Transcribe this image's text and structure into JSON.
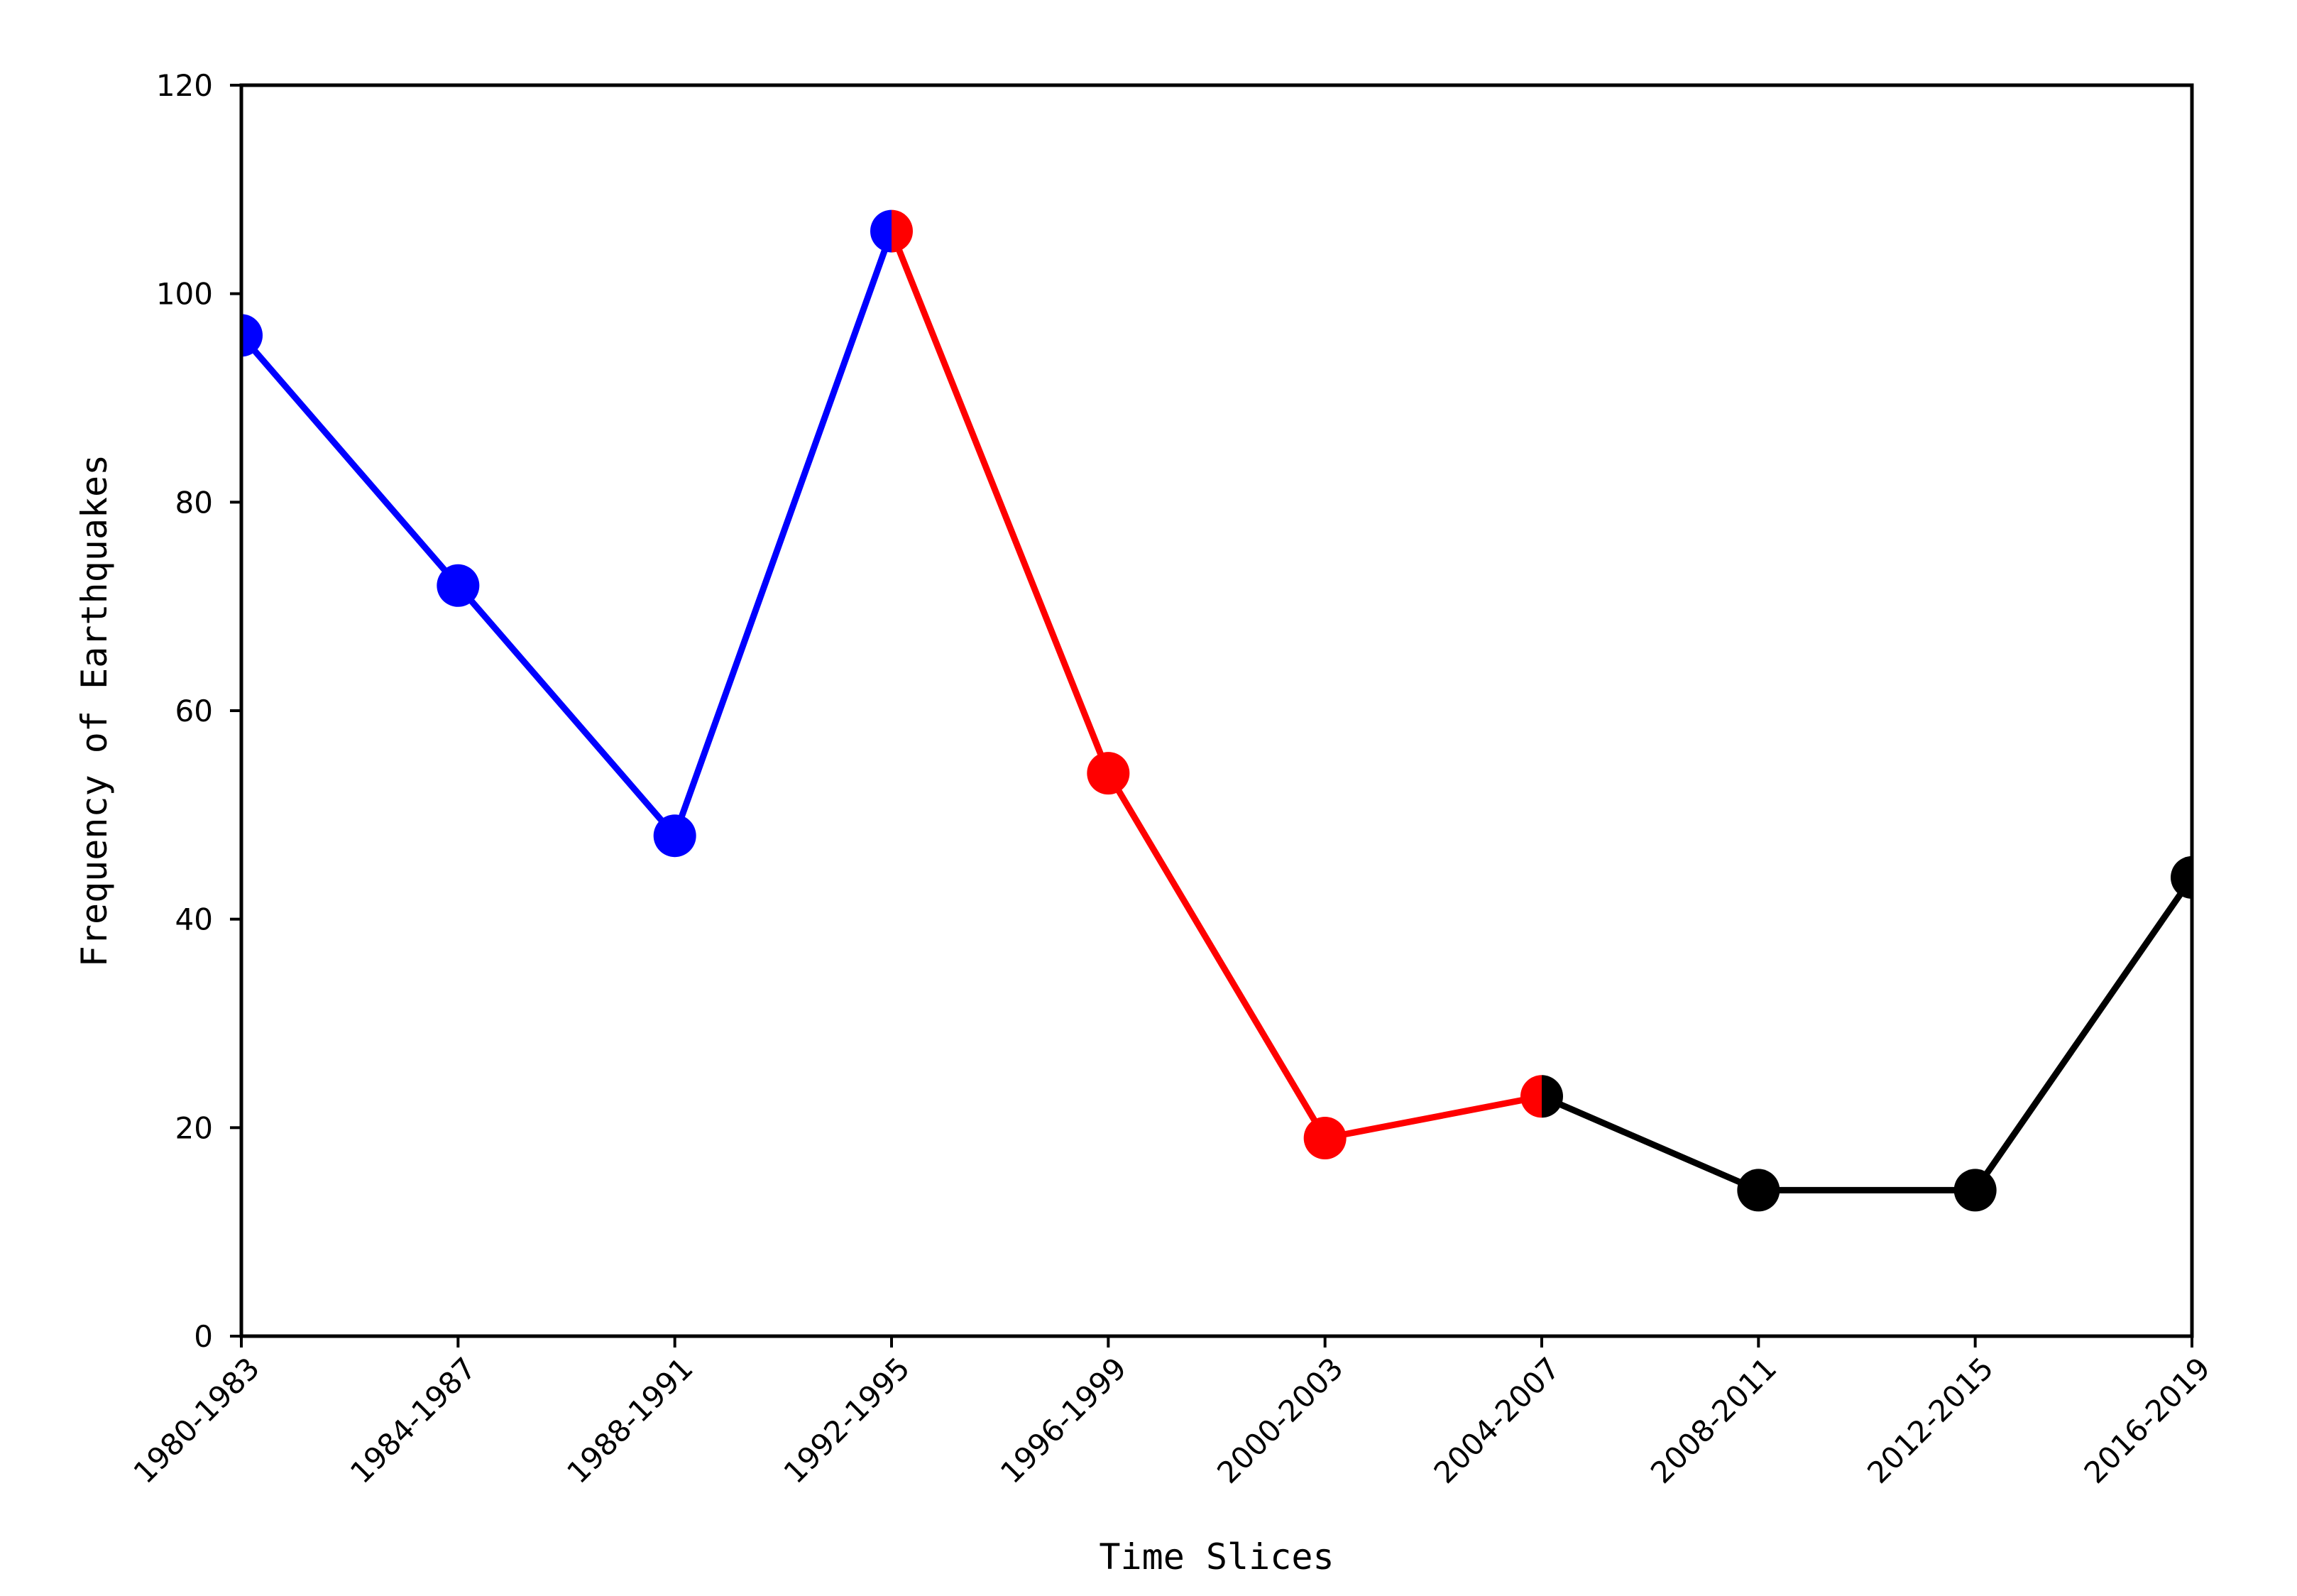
{
  "chart_data": {
    "type": "line",
    "title": "",
    "xlabel": "Time Slices",
    "ylabel": "Frequency of Earthquakes",
    "categories": [
      "1980-1983",
      "1984-1987",
      "1988-1991",
      "1992-1995",
      "1996-1999",
      "2000-2003",
      "2004-2007",
      "2008-2011",
      "2012-2015",
      "2016-2019"
    ],
    "values": [
      96,
      72,
      48,
      106,
      54,
      19,
      23,
      14,
      14,
      44
    ],
    "ylim": [
      0,
      120
    ],
    "yticks": [
      0,
      20,
      40,
      60,
      80,
      100,
      120
    ],
    "grid": false,
    "legend": "none",
    "segments": [
      {
        "from": 0,
        "to": 3,
        "color": "#0000ff"
      },
      {
        "from": 3,
        "to": 6,
        "color": "#ff0000"
      },
      {
        "from": 6,
        "to": 9,
        "color": "#000000"
      }
    ]
  }
}
